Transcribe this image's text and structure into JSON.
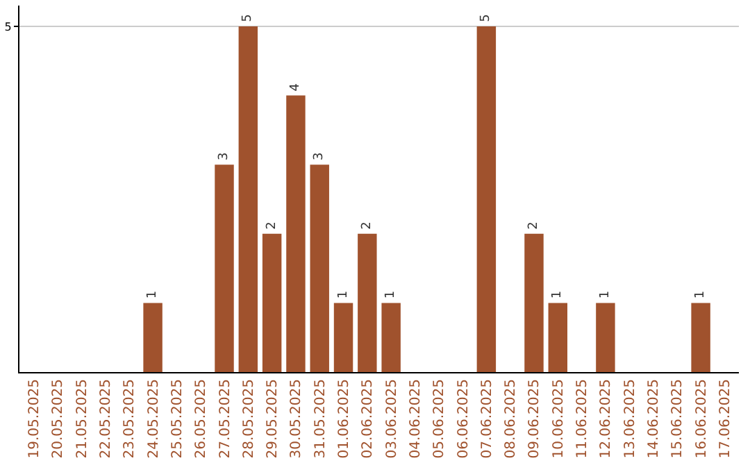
{
  "chart_data": {
    "type": "bar",
    "categories": [
      "19.05.2025",
      "20.05.2025",
      "21.05.2025",
      "22.05.2025",
      "23.05.2025",
      "24.05.2025",
      "25.05.2025",
      "26.05.2025",
      "27.05.2025",
      "28.05.2025",
      "29.05.2025",
      "30.05.2025",
      "31.05.2025",
      "01.06.2025",
      "02.06.2025",
      "03.06.2025",
      "04.06.2025",
      "05.06.2025",
      "06.06.2025",
      "07.06.2025",
      "08.06.2025",
      "09.06.2025",
      "10.06.2025",
      "11.06.2025",
      "12.06.2025",
      "13.06.2025",
      "14.06.2025",
      "15.06.2025",
      "16.06.2025",
      "17.06.2025"
    ],
    "values": [
      0,
      0,
      0,
      0,
      0,
      1,
      0,
      0,
      3,
      5,
      2,
      4,
      3,
      1,
      2,
      1,
      0,
      0,
      0,
      5,
      0,
      2,
      1,
      0,
      1,
      0,
      0,
      0,
      1,
      0
    ],
    "value_labels": [
      null,
      null,
      null,
      null,
      null,
      "1",
      null,
      null,
      "3",
      "5",
      "2",
      "4",
      "3",
      "1",
      "2",
      "1",
      null,
      null,
      null,
      "5",
      null,
      "2",
      "1",
      null,
      "1",
      null,
      null,
      null,
      "1",
      null
    ],
    "color": "#a0522d",
    "ylim": [
      0,
      5.3
    ],
    "yticks": [
      5
    ],
    "grid": "y",
    "legend": false
  }
}
